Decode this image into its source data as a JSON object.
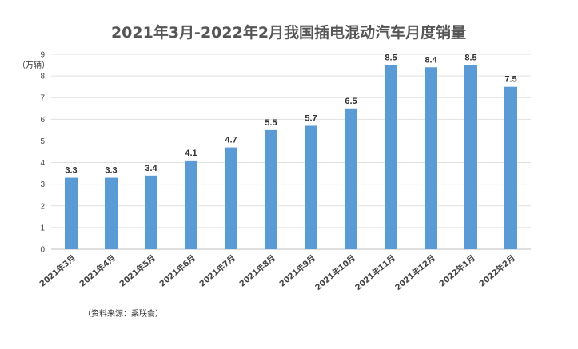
{
  "chart_data": {
    "type": "bar",
    "title": "2021年3月-2022年2月我国插电混动汽车月度销量",
    "ylabel": "（万辆）",
    "xlabel": "",
    "categories": [
      "2021年3月",
      "2021年4月",
      "2021年5月",
      "2021年6月",
      "2021年7月",
      "2021年8月",
      "2021年9月",
      "2021年10月",
      "2021年11月",
      "2021年12月",
      "2022年1月",
      "2022年2月"
    ],
    "values": [
      3.3,
      3.3,
      3.4,
      4.1,
      4.7,
      5.5,
      5.7,
      6.5,
      8.5,
      8.4,
      8.5,
      7.5
    ],
    "data_labels": [
      "3.3",
      "3.3",
      "3.4",
      "4.1",
      "4.7",
      "5.5",
      "5.7",
      "6.5",
      "8.5",
      "8.4",
      "8.5",
      "7.5"
    ],
    "ylim": [
      0,
      9
    ],
    "yticks": [
      "0",
      "1",
      "2",
      "3",
      "4",
      "5",
      "6",
      "7",
      "8",
      "9"
    ],
    "grid": true,
    "legend": "none",
    "bar_color": "#5b9bd5",
    "grid_color": "#e0e0e0"
  },
  "source_note": "（资料来源：乘联会）"
}
